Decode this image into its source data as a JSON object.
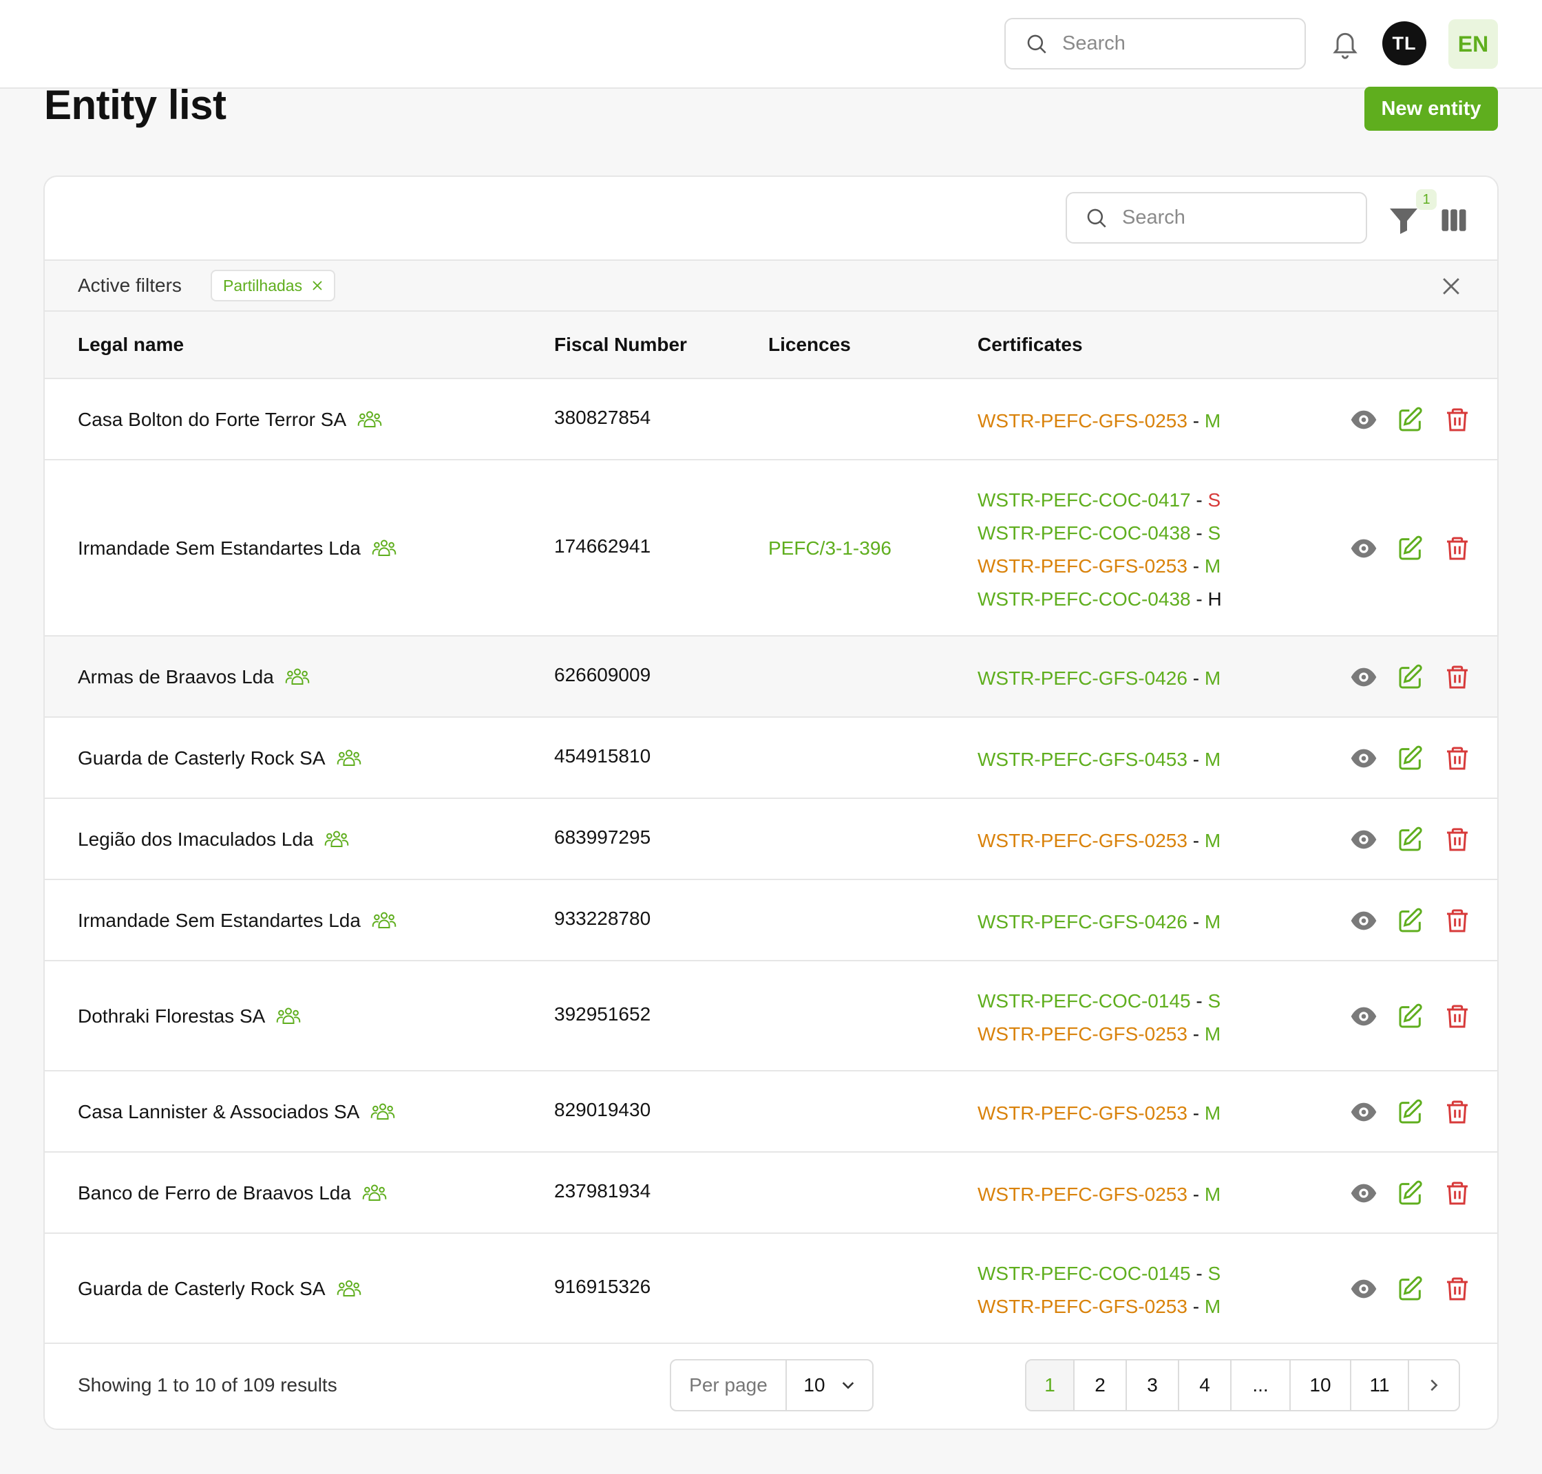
{
  "header": {
    "search_placeholder": "Search",
    "avatar_initials": "TL",
    "language": "EN"
  },
  "page": {
    "title": "Entity list",
    "new_button": "New entity"
  },
  "toolbar": {
    "search_placeholder": "Search",
    "filter_count": "1"
  },
  "filters": {
    "label": "Active filters",
    "chips": [
      "Partilhadas"
    ]
  },
  "table": {
    "columns": {
      "legal_name": "Legal name",
      "fiscal_number": "Fiscal Number",
      "licences": "Licences",
      "certificates": "Certificates"
    },
    "rows": [
      {
        "name": "Casa Bolton do Forte Terror SA",
        "fiscal": "380827854",
        "licence": "",
        "certs": [
          {
            "code": "WSTR-PEFC-GFS-0253",
            "code_color": "orange",
            "level": "M",
            "level_color": "green"
          }
        ]
      },
      {
        "name": "Irmandade Sem Estandartes Lda",
        "fiscal": "174662941",
        "licence": "PEFC/3-1-396",
        "certs": [
          {
            "code": "WSTR-PEFC-COC-0417",
            "code_color": "green",
            "level": "S",
            "level_color": "red"
          },
          {
            "code": "WSTR-PEFC-COC-0438",
            "code_color": "green",
            "level": "S",
            "level_color": "green"
          },
          {
            "code": "WSTR-PEFC-GFS-0253",
            "code_color": "orange",
            "level": "M",
            "level_color": "green"
          },
          {
            "code": "WSTR-PEFC-COC-0438",
            "code_color": "green",
            "level": "H",
            "level_color": "dark"
          }
        ]
      },
      {
        "name": "Armas de Braavos Lda",
        "fiscal": "626609009",
        "licence": "",
        "certs": [
          {
            "code": "WSTR-PEFC-GFS-0426",
            "code_color": "green",
            "level": "M",
            "level_color": "green"
          }
        ]
      },
      {
        "name": "Guarda de Casterly Rock SA",
        "fiscal": "454915810",
        "licence": "",
        "certs": [
          {
            "code": "WSTR-PEFC-GFS-0453",
            "code_color": "green",
            "level": "M",
            "level_color": "green"
          }
        ]
      },
      {
        "name": "Legião dos Imaculados Lda",
        "fiscal": "683997295",
        "licence": "",
        "certs": [
          {
            "code": "WSTR-PEFC-GFS-0253",
            "code_color": "orange",
            "level": "M",
            "level_color": "green"
          }
        ]
      },
      {
        "name": "Irmandade Sem Estandartes Lda",
        "fiscal": "933228780",
        "licence": "",
        "certs": [
          {
            "code": "WSTR-PEFC-GFS-0426",
            "code_color": "green",
            "level": "M",
            "level_color": "green"
          }
        ]
      },
      {
        "name": "Dothraki Florestas SA",
        "fiscal": "392951652",
        "licence": "",
        "certs": [
          {
            "code": "WSTR-PEFC-COC-0145",
            "code_color": "green",
            "level": "S",
            "level_color": "green"
          },
          {
            "code": "WSTR-PEFC-GFS-0253",
            "code_color": "orange",
            "level": "M",
            "level_color": "green"
          }
        ]
      },
      {
        "name": "Casa Lannister & Associados SA",
        "fiscal": "829019430",
        "licence": "",
        "certs": [
          {
            "code": "WSTR-PEFC-GFS-0253",
            "code_color": "orange",
            "level": "M",
            "level_color": "green"
          }
        ]
      },
      {
        "name": "Banco de Ferro de Braavos Lda",
        "fiscal": "237981934",
        "licence": "",
        "certs": [
          {
            "code": "WSTR-PEFC-GFS-0253",
            "code_color": "orange",
            "level": "M",
            "level_color": "green"
          }
        ]
      },
      {
        "name": "Guarda de Casterly Rock SA",
        "fiscal": "916915326",
        "licence": "",
        "certs": [
          {
            "code": "WSTR-PEFC-COC-0145",
            "code_color": "green",
            "level": "S",
            "level_color": "green"
          },
          {
            "code": "WSTR-PEFC-GFS-0253",
            "code_color": "orange",
            "level": "M",
            "level_color": "green"
          }
        ]
      }
    ]
  },
  "footer": {
    "showing": "Showing 1 to 10 of 109 results",
    "per_page_label": "Per page",
    "per_page_value": "10",
    "pages": [
      "1",
      "2",
      "3",
      "4",
      "...",
      "10",
      "11"
    ],
    "active_page": "1"
  },
  "colors": {
    "accent": "#5fae1e",
    "orange": "#d9820b",
    "danger": "#d73a3a"
  }
}
